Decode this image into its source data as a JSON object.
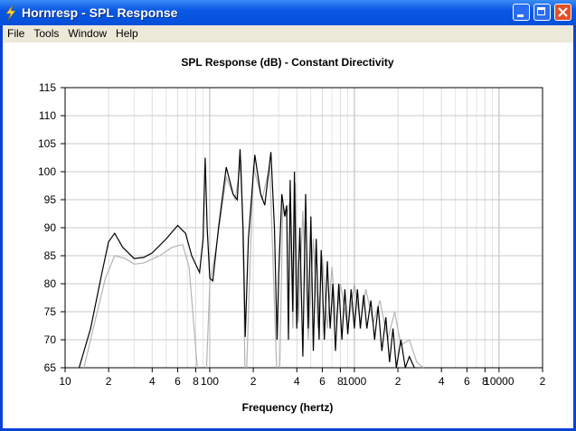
{
  "window": {
    "title": "Hornresp - SPL Response"
  },
  "menu": [
    "File",
    "Tools",
    "Window",
    "Help"
  ],
  "chart_data": {
    "type": "line",
    "title": "SPL Response (dB) - Constant Directivity",
    "x_label": "Frequency (hertz)",
    "x_log": true,
    "grid": true,
    "xlim": [
      10,
      20000
    ],
    "ylim": [
      65,
      115
    ],
    "xticks": [
      10,
      {
        "value": 20,
        "label": "2"
      },
      {
        "value": 40,
        "label": "4"
      },
      {
        "value": 60,
        "label": "6"
      },
      {
        "value": 80,
        "label": "8"
      },
      100,
      {
        "value": 200,
        "label": "2"
      },
      {
        "value": 400,
        "label": "4"
      },
      {
        "value": 600,
        "label": "6"
      },
      {
        "value": 800,
        "label": "8"
      },
      1000,
      {
        "value": 2000,
        "label": "2"
      },
      {
        "value": 4000,
        "label": "4"
      },
      {
        "value": 6000,
        "label": "6"
      },
      {
        "value": 8000,
        "label": "8"
      },
      10000,
      {
        "value": 20000,
        "label": "2"
      }
    ],
    "x_minor_ticks": [
      30,
      50,
      70,
      90,
      300,
      500,
      700,
      900,
      3000,
      5000,
      7000,
      9000
    ],
    "yticks": [
      65,
      70,
      75,
      80,
      85,
      90,
      95,
      100,
      105,
      110,
      115
    ],
    "series": [
      {
        "color": "#b4b4b4",
        "x": [
          13.5,
          16,
          19,
          22,
          26,
          30,
          35,
          45,
          55,
          65,
          72,
          78,
          82,
          88,
          95,
          100,
          110,
          130,
          150,
          165,
          172,
          175,
          177,
          180,
          200,
          230,
          260,
          290,
          297,
          305,
          320,
          340,
          360,
          375,
          390,
          410,
          440,
          480,
          520,
          560,
          600,
          650,
          700,
          750,
          800,
          900,
          1000,
          1100,
          1200,
          1350,
          1500,
          1700,
          1900,
          2100,
          2400,
          2700,
          3000
        ],
        "values": [
          65,
          73,
          81,
          85,
          84.5,
          83.5,
          83.7,
          85,
          86.5,
          87,
          83,
          72,
          65,
          null,
          65,
          80,
          86,
          99,
          95,
          102,
          80,
          65,
          null,
          65,
          101,
          95,
          101,
          65,
          null,
          65,
          94,
          92,
          95,
          72,
          98,
          73,
          93,
          70,
          88,
          72,
          85,
          72,
          83,
          73,
          80,
          72,
          80,
          73,
          79,
          73,
          77,
          70,
          75,
          69,
          70,
          66,
          65
        ]
      },
      {
        "color": "#000000",
        "x": [
          12.5,
          15,
          18,
          20,
          22,
          25,
          30,
          35,
          40,
          50,
          60,
          68,
          75,
          85,
          90,
          93,
          96,
          100,
          105,
          115,
          130,
          145,
          155,
          162,
          170,
          176,
          185,
          205,
          225,
          240,
          265,
          280,
          292,
          300,
          315,
          330,
          340,
          350,
          360,
          375,
          385,
          400,
          420,
          440,
          460,
          480,
          500,
          520,
          545,
          570,
          590,
          620,
          650,
          680,
          710,
          740,
          780,
          820,
          860,
          900,
          950,
          1000,
          1050,
          1100,
          1160,
          1220,
          1300,
          1380,
          1460,
          1550,
          1650,
          1750,
          1850,
          1950,
          2100,
          2250,
          2400,
          2600
        ],
        "values": [
          65,
          72,
          82,
          87.5,
          89,
          86.5,
          84.5,
          84.7,
          85.5,
          88,
          90.4,
          89,
          85,
          82,
          88,
          102.5,
          90,
          81,
          80.5,
          90,
          100.8,
          96,
          95,
          104,
          90,
          70.5,
          88,
          103,
          96,
          94,
          103.5,
          90,
          70,
          82,
          96,
          92,
          94,
          70,
          98.5,
          75,
          100,
          72,
          90,
          67,
          96,
          72,
          92,
          68,
          88,
          70,
          86,
          70,
          84,
          72,
          80,
          68,
          80,
          70,
          79,
          71,
          79,
          72,
          79,
          72,
          78,
          72,
          77,
          70,
          76,
          68,
          74,
          66,
          72,
          65,
          70,
          65,
          67,
          65
        ]
      }
    ]
  }
}
